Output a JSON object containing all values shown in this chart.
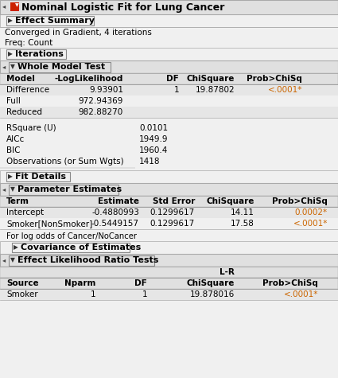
{
  "title": "Nominal Logistic Fit for Lung Cancer",
  "bg_color": "#f0f0f0",
  "section_bg": "#e0e0e0",
  "table_row_bg": "#e8e8e8",
  "orange": "#cc6600",
  "black": "#000000",
  "converged_text": "Converged in Gradient, 4 iterations",
  "freq_text": "Freq: Count",
  "wmt_headers": [
    "Model",
    "-LogLikelihood",
    "DF",
    "ChiSquare",
    "Prob>ChiSq"
  ],
  "wmt_rows": [
    [
      "Difference",
      "9.93901",
      "1",
      "19.87802",
      "<.0001*"
    ],
    [
      "Full",
      "972.94369",
      "",
      "",
      ""
    ],
    [
      "Reduced",
      "982.88270",
      "",
      "",
      ""
    ]
  ],
  "stats_rows": [
    [
      "RSquare (U)",
      "0.0101"
    ],
    [
      "AICc",
      "1949.9"
    ],
    [
      "BIC",
      "1960.4"
    ],
    [
      "Observations (or Sum Wgts)",
      "1418"
    ]
  ],
  "pe_headers": [
    "Term",
    "Estimate",
    "Std Error",
    "ChiSquare",
    "Prob>ChiSq"
  ],
  "pe_rows": [
    [
      "Intercept",
      "-0.4880993",
      "0.1299617",
      "14.11",
      "0.0002*"
    ],
    [
      "Smoker[NonSmoker]",
      "-0.5449157",
      "0.1299617",
      "17.58",
      "<.0001*"
    ]
  ],
  "pe_note": "For log odds of Cancer/NoCancer",
  "elrt_rows": [
    [
      "Smoker",
      "1",
      "1",
      "19.878016",
      "<.0001*"
    ]
  ],
  "sections": {
    "effect_summary": "Effect Summary",
    "iterations": "Iterations",
    "whole_model": "Whole Model Test",
    "fit_details": "Fit Details",
    "param_estimates": "Parameter Estimates",
    "covariance": "Covariance of Estimates",
    "effect_lr": "Effect Likelihood Ratio Tests"
  }
}
